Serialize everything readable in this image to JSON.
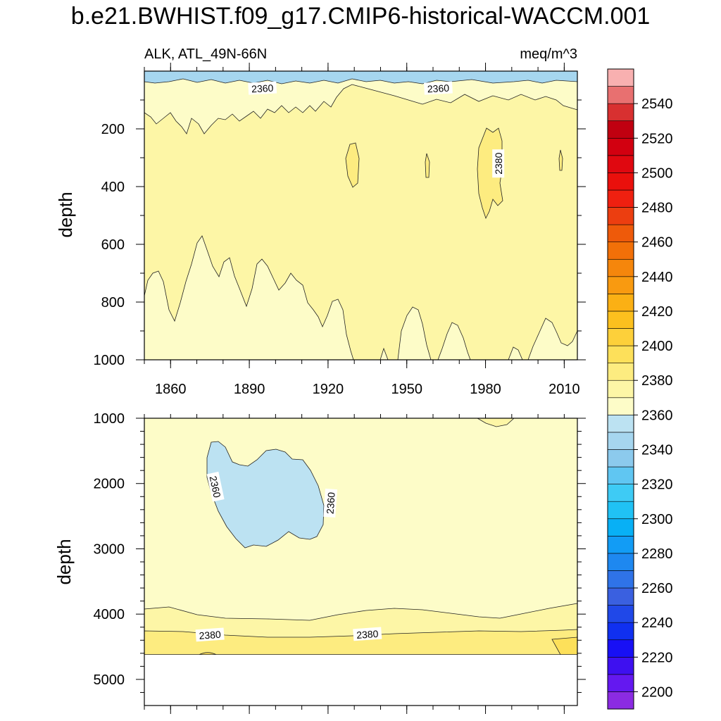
{
  "chart_data": {
    "type": "contour",
    "title": "b.e21.BWHIST.f09_g17.CMIP6-historical-WACCM.001",
    "variable_label": "ALK, ATL_49N-66N",
    "units": "meq/m^3",
    "x": {
      "label": "",
      "range": [
        1850,
        2015
      ],
      "ticks": [
        1860,
        1890,
        1920,
        1950,
        1980,
        2010
      ]
    },
    "panels": [
      {
        "name": "upper",
        "ylabel": "depth",
        "ylim": [
          0,
          1000
        ],
        "yticks": [
          200,
          400,
          600,
          800,
          1000
        ],
        "region_levels": {
          "surface_low": 2340,
          "upper_band": 2360,
          "mid_layer": 2370,
          "core_high": 2380,
          "deep_band": 2360
        },
        "contour_labels": [
          {
            "text": "2360",
            "year": 1895,
            "depth": 60
          },
          {
            "text": "2360",
            "year": 1962,
            "depth": 60
          },
          {
            "text": "2380",
            "year": 1985,
            "depth": 320
          }
        ]
      },
      {
        "name": "lower",
        "ylabel": "depth",
        "ylim": [
          1000,
          5400
        ],
        "yticks": [
          1000,
          2000,
          3000,
          4000,
          5000
        ],
        "data_bottom_depth": 4620,
        "region_levels": {
          "background": 2360,
          "blob": 2350,
          "deep_band_upper": 2370,
          "deep_band_lower": 2380
        },
        "contour_labels": [
          {
            "text": "2360",
            "year": 1877,
            "depth": 2050
          },
          {
            "text": "2360",
            "year": 1921,
            "depth": 2300
          },
          {
            "text": "2380",
            "year": 1875,
            "depth": 4320
          },
          {
            "text": "2380",
            "year": 1935,
            "depth": 4310
          }
        ]
      }
    ],
    "colorbar": {
      "min": 2190,
      "max": 2560,
      "step": 10,
      "labels": [
        "2540",
        "2520",
        "2500",
        "2480",
        "2460",
        "2440",
        "2420",
        "2400",
        "2380",
        "2360",
        "2340",
        "2320",
        "2300",
        "2280",
        "2260",
        "2240",
        "2220",
        "2200"
      ],
      "label_values": [
        2540,
        2520,
        2500,
        2480,
        2460,
        2440,
        2420,
        2400,
        2380,
        2360,
        2340,
        2320,
        2300,
        2280,
        2260,
        2240,
        2220,
        2200
      ],
      "colors": [
        "#8b2be2",
        "#6418f0",
        "#3e10f0",
        "#1810f5",
        "#1030f0",
        "#2048e8",
        "#3a60e0",
        "#2f73e8",
        "#1e88f0",
        "#129cf5",
        "#08b0f5",
        "#20c2f5",
        "#3ecbf5",
        "#60c6f2",
        "#8ccaed",
        "#a6d6ef",
        "#bce2f2",
        "#fdfcc8",
        "#fdf6a6",
        "#fdec80",
        "#fde05a",
        "#fdd03a",
        "#fcc01e",
        "#fbb014",
        "#f99a10",
        "#f5860c",
        "#f27008",
        "#ee5a0a",
        "#ec3e10",
        "#ef2010",
        "#ea100c",
        "#e00810",
        "#d20010",
        "#c00010",
        "#d83030",
        "#e87070",
        "#f8b0b0"
      ]
    }
  }
}
